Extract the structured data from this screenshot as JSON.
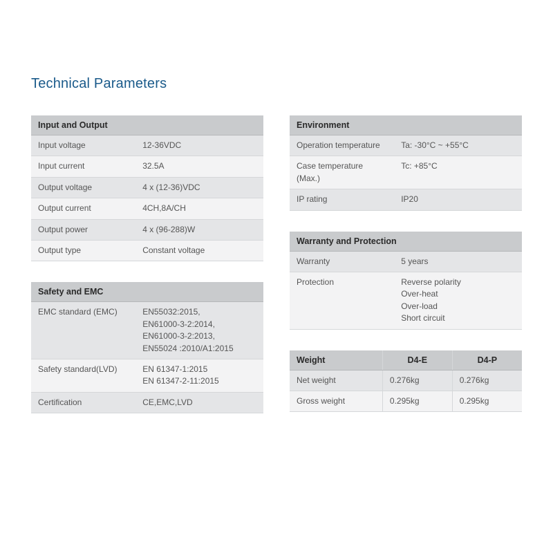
{
  "title": "Technical Parameters",
  "colors": {
    "title": "#1a5a8a",
    "header_bg": "#c9cbcd",
    "row_odd_bg": "#e4e5e7",
    "row_even_bg": "#f3f3f4",
    "border": "#d5d7d9",
    "text": "#555555",
    "background": "#ffffff"
  },
  "typography": {
    "title_fontsize": 20,
    "body_fontsize": 12,
    "header_fontsize": 12.5,
    "font_family": "Arial"
  },
  "left": {
    "io": {
      "header": "Input and Output",
      "rows": [
        {
          "label": "Input voltage",
          "value": "12-36VDC"
        },
        {
          "label": "Input current",
          "value": "32.5A"
        },
        {
          "label": "Output voltage",
          "value": "4 x (12-36)VDC"
        },
        {
          "label": "Output current",
          "value": "4CH,8A/CH"
        },
        {
          "label": "Output power",
          "value": "4 x (96-288)W"
        },
        {
          "label": "Output type",
          "value": "Constant voltage"
        }
      ]
    },
    "safety": {
      "header": "Safety and EMC",
      "rows": [
        {
          "label": "EMC standard (EMC)",
          "value": "EN55032:2015,\nEN61000-3-2:2014,\nEN61000-3-2:2013,\nEN55024 :2010/A1:2015"
        },
        {
          "label": "Safety standard(LVD)",
          "value": "EN 61347-1:2015\nEN 61347-2-11:2015"
        },
        {
          "label": "Certification",
          "value": "CE,EMC,LVD"
        }
      ]
    }
  },
  "right": {
    "env": {
      "header": "Environment",
      "rows": [
        {
          "label": "Operation temperature",
          "value": "Ta: -30°C ~ +55°C"
        },
        {
          "label": "Case temperature (Max.)",
          "value": "Tc: +85°C"
        },
        {
          "label": "IP rating",
          "value": "IP20"
        }
      ]
    },
    "warranty": {
      "header": "Warranty and Protection",
      "rows": [
        {
          "label": "Warranty",
          "value": "5 years"
        },
        {
          "label": "Protection",
          "value": "Reverse polarity\nOver-heat\nOver-load\nShort circuit"
        }
      ]
    },
    "weight": {
      "columns": [
        "Weight",
        "D4-E",
        "D4-P"
      ],
      "rows": [
        {
          "label": "Net weight",
          "c1": "0.276kg",
          "c2": "0.276kg"
        },
        {
          "label": "Gross weight",
          "c1": "0.295kg",
          "c2": "0.295kg"
        }
      ]
    }
  }
}
